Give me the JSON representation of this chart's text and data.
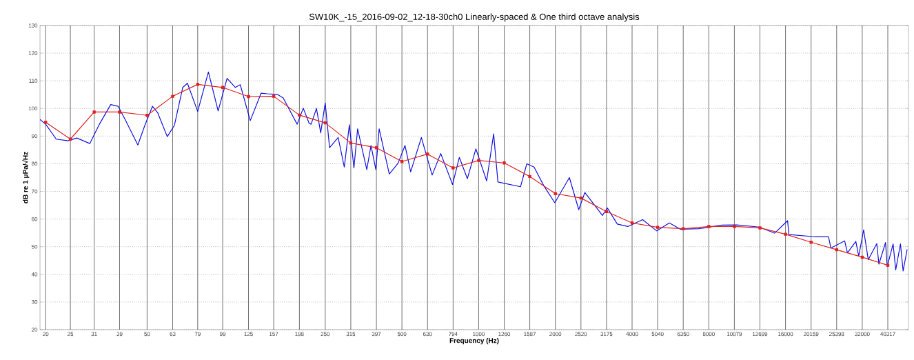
{
  "chart_data": {
    "type": "line",
    "title": "SW10K_-15_2016-09-02_12-18-30ch0 Linearly-spaced & One third octave analysis",
    "xlabel": "Frequency (Hz)",
    "ylabel": "dB re 1 μPa/√Hz",
    "log": "x",
    "grid": true,
    "line_style": "solid",
    "xlim": [
      19,
      48600
    ],
    "ylim": [
      20,
      130
    ],
    "xticks": [
      20,
      25,
      31,
      39,
      50,
      63,
      79,
      99,
      125,
      157,
      198,
      250,
      315,
      397,
      500,
      630,
      794,
      1000,
      1260,
      1587,
      2000,
      2520,
      3175,
      4000,
      5040,
      6350,
      8000,
      10079,
      12699,
      16000,
      20159,
      25398,
      32000,
      40317
    ],
    "yticks": [
      20,
      30,
      40,
      50,
      60,
      70,
      80,
      90,
      100,
      110,
      120,
      130
    ],
    "series": [
      {
        "color": "#1010e0",
        "marker": "none",
        "x": [
          19,
          20,
          22,
          24.5,
          26.5,
          29.8,
          32.5,
          36,
          38.5,
          41,
          46,
          49,
          52.5,
          55,
          60,
          64,
          69,
          72,
          79,
          87,
          95,
          103,
          111,
          116,
          127,
          140,
          148,
          162,
          171,
          194,
          205,
          216,
          220,
          231,
          240,
          250,
          260,
          281,
          297,
          311,
          324,
          335,
          364,
          378,
          395,
          407,
          446,
          483,
          514,
          541,
          596,
          657,
          710,
          790,
          840,
          903,
          975,
          1075,
          1145,
          1190,
          1460,
          1545,
          1650,
          1800,
          1990,
          2270,
          2470,
          2610,
          3060,
          3200,
          3500,
          3850,
          4400,
          5000,
          5600,
          6200,
          7300,
          9000,
          10300,
          12600,
          14500,
          16300,
          16500,
          20800,
          23600,
          24100,
          27300,
          28000,
          30200,
          31000,
          32400,
          33800,
          36500,
          37200,
          39500,
          40100,
          42300,
          43300,
          45200,
          46300,
          48000
        ],
        "values": [
          96.0,
          94.3,
          88.9,
          88.3,
          89.3,
          87.3,
          94.3,
          101.4,
          100.8,
          96.0,
          86.8,
          93.9,
          100.8,
          98.5,
          89.8,
          93.9,
          107.6,
          109.1,
          98.9,
          113.2,
          99.1,
          110.9,
          107.6,
          108.6,
          95.6,
          105.5,
          105.3,
          105.1,
          103.8,
          94.3,
          100.1,
          94.7,
          94.3,
          100.0,
          91.2,
          102.0,
          85.8,
          89.5,
          78.8,
          94.1,
          78.5,
          92.6,
          77.9,
          86.6,
          77.9,
          92.6,
          76.3,
          80.2,
          86.6,
          77.1,
          89.5,
          75.9,
          83.7,
          72.5,
          82.3,
          74.6,
          85.4,
          73.8,
          90.8,
          73.4,
          71.7,
          80.0,
          78.8,
          72.1,
          65.9,
          75.0,
          63.4,
          69.6,
          61.3,
          64.0,
          58.2,
          57.3,
          59.8,
          55.7,
          58.6,
          56.3,
          56.5,
          57.8,
          57.9,
          57.1,
          54.9,
          59.4,
          54.4,
          53.6,
          53.6,
          49.5,
          52.1,
          47.8,
          51.9,
          46.6,
          56.1,
          45.3,
          51.1,
          43.7,
          51.5,
          42.8,
          51.0,
          41.6,
          51.0,
          41.2,
          49.0
        ]
      },
      {
        "color": "#e02020",
        "marker": "square",
        "x": [
          20,
          25,
          31,
          39,
          50,
          63,
          79,
          99,
          125,
          157,
          198,
          250,
          315,
          397,
          500,
          630,
          794,
          1000,
          1260,
          1587,
          2000,
          2520,
          3175,
          4000,
          5040,
          6350,
          8000,
          10079,
          12699,
          16000,
          20159,
          25398,
          32000,
          40317
        ],
        "values": [
          95.0,
          88.9,
          98.7,
          98.7,
          97.5,
          104.4,
          108.7,
          107.6,
          104.3,
          104.4,
          97.6,
          94.8,
          87.5,
          85.8,
          80.8,
          83.5,
          78.5,
          81.2,
          80.3,
          75.4,
          69.2,
          67.6,
          62.7,
          58.6,
          57.0,
          56.5,
          57.3,
          57.3,
          56.8,
          54.5,
          51.6,
          48.9,
          46.2,
          43.3
        ]
      }
    ]
  }
}
